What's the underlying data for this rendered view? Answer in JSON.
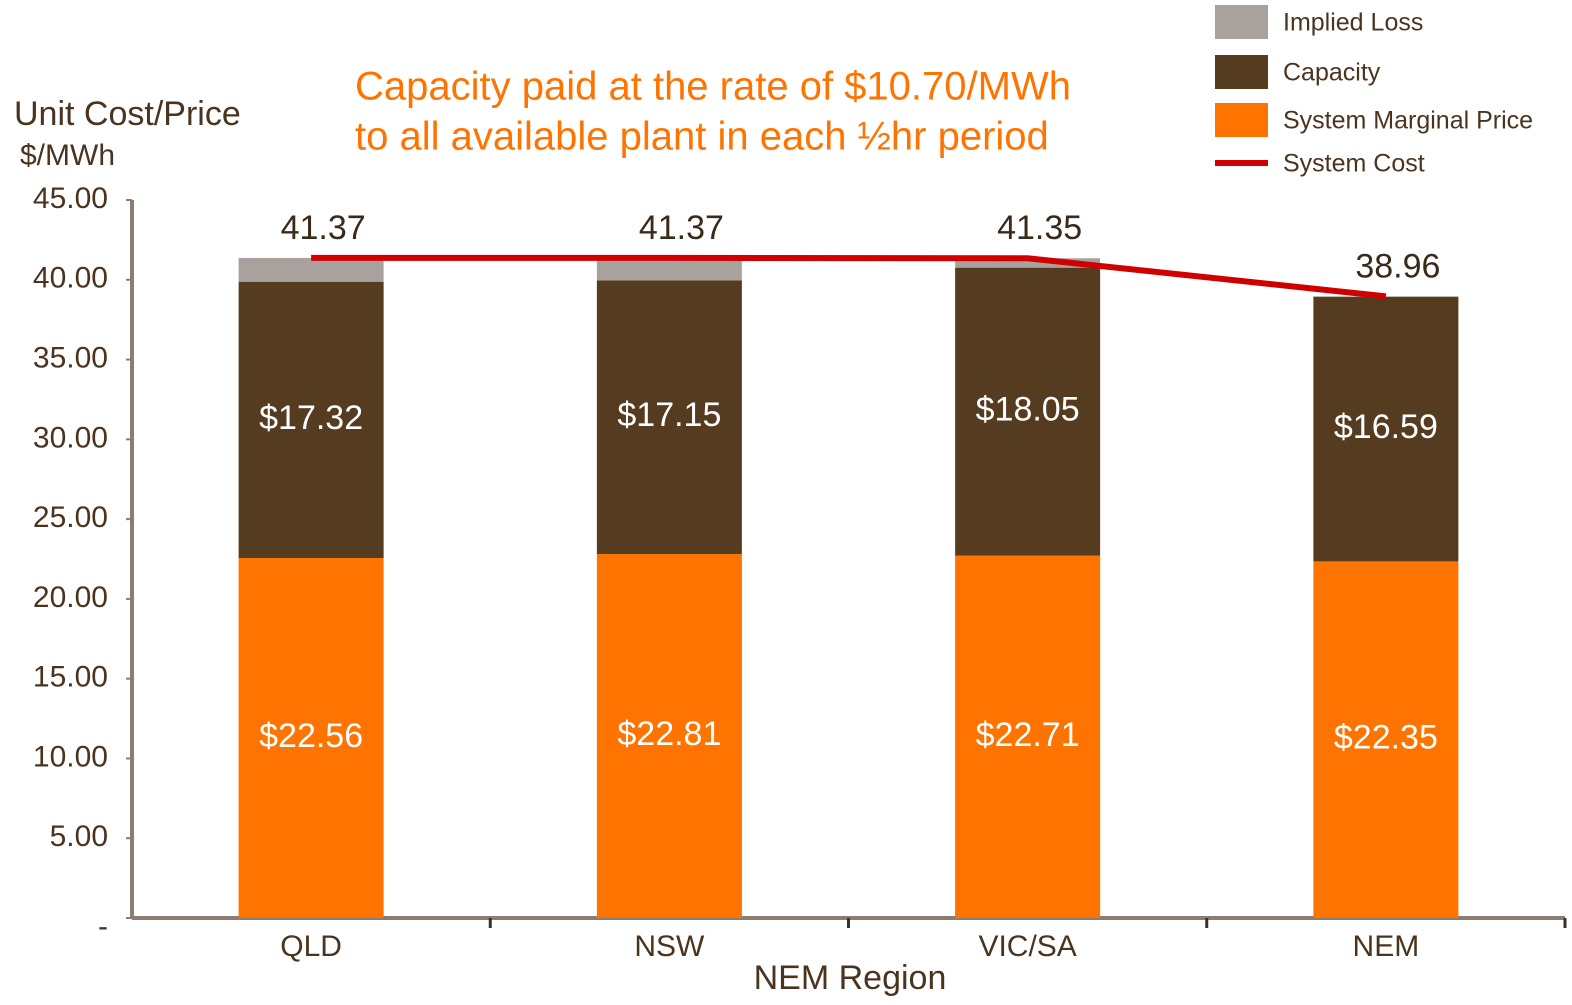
{
  "chart_data": {
    "type": "bar",
    "stacked": true,
    "annotation": [
      "Capacity paid at the rate of $10.70/MWh",
      "to all available plant in each ½hr  period"
    ],
    "y_label": [
      "Unit Cost/Price",
      "$/MWh"
    ],
    "x_label": "NEM Region",
    "categories": [
      "QLD",
      "NSW",
      "VIC/SA",
      "NEM"
    ],
    "series": [
      {
        "name": "System Marginal Price",
        "color": "#ff7300",
        "values": [
          22.56,
          22.81,
          22.71,
          22.35
        ],
        "value_labels": [
          "$22.56",
          "$22.81",
          "$22.71",
          "$22.35"
        ]
      },
      {
        "name": "Capacity",
        "color": "#553b20",
        "values": [
          17.32,
          17.15,
          18.05,
          16.59
        ],
        "value_labels": [
          "$17.32",
          "$17.15",
          "$18.05",
          "$16.59"
        ]
      },
      {
        "name": "Implied Loss",
        "color": "#a9a29c",
        "values": [
          1.49,
          1.41,
          0.59,
          0.02
        ]
      },
      {
        "name": "System Cost",
        "type": "line",
        "color": "#d00000",
        "values": [
          41.37,
          41.37,
          41.35,
          38.96
        ]
      }
    ],
    "ylim": [
      0,
      45
    ],
    "yticks": [
      {
        "value": 0,
        "label": "-"
      },
      {
        "value": 5,
        "label": "5.00"
      },
      {
        "value": 10,
        "label": "10.00"
      },
      {
        "value": 15,
        "label": "15.00"
      },
      {
        "value": 20,
        "label": "20.00"
      },
      {
        "value": 25,
        "label": "25.00"
      },
      {
        "value": 30,
        "label": "30.00"
      },
      {
        "value": 35,
        "label": "35.00"
      },
      {
        "value": 40,
        "label": "40.00"
      },
      {
        "value": 45,
        "label": "45.00"
      }
    ],
    "legend": "top-right"
  }
}
